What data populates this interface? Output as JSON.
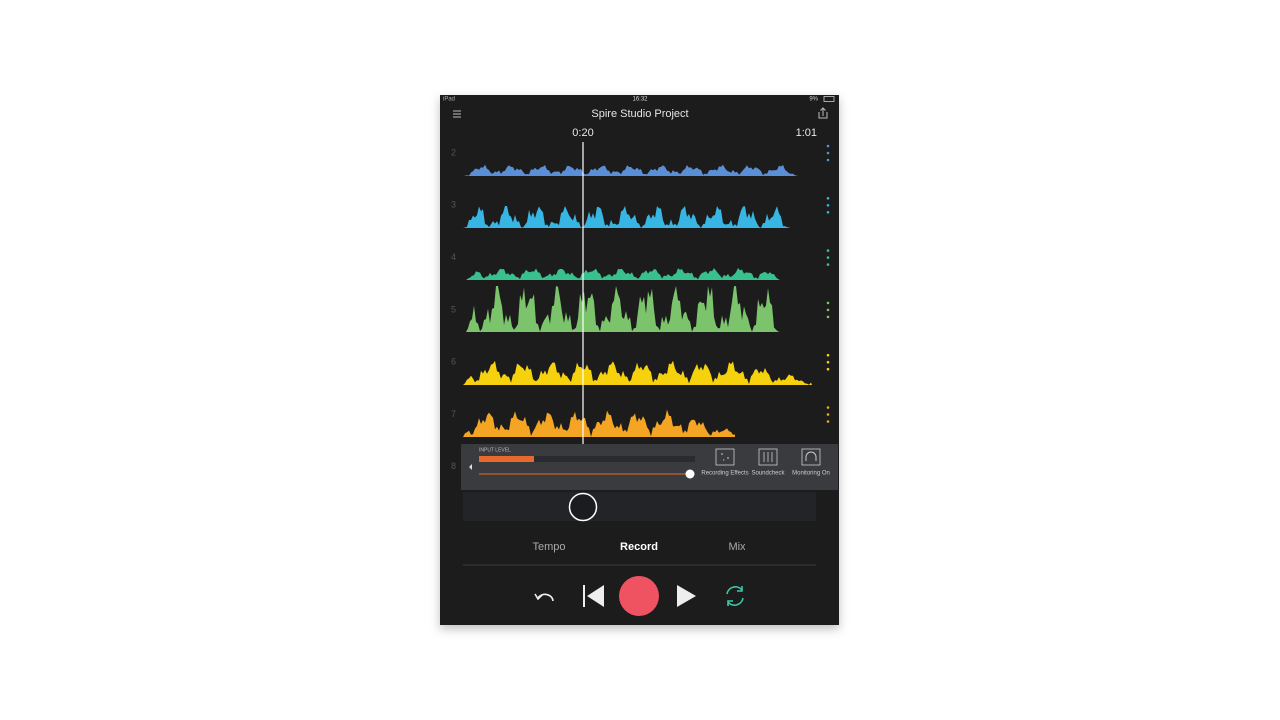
{
  "status_bar": {
    "device": "iPad",
    "time": "16:32",
    "battery": "9%"
  },
  "header": {
    "title": "Spire Studio Project"
  },
  "timeline": {
    "current": "0:20",
    "end": "1:01"
  },
  "tracks": [
    {
      "label": "2"
    },
    {
      "label": "3"
    },
    {
      "label": "4"
    },
    {
      "label": "5"
    },
    {
      "label": "6"
    },
    {
      "label": "7"
    },
    {
      "label": "8"
    }
  ],
  "input_panel": {
    "label": "INPUT LEVEL",
    "buttons": [
      {
        "label": "Recording Effects"
      },
      {
        "label": "Soundcheck"
      },
      {
        "label": "Monitoring On"
      }
    ]
  },
  "tabs": [
    "Tempo",
    "Record",
    "Mix"
  ]
}
